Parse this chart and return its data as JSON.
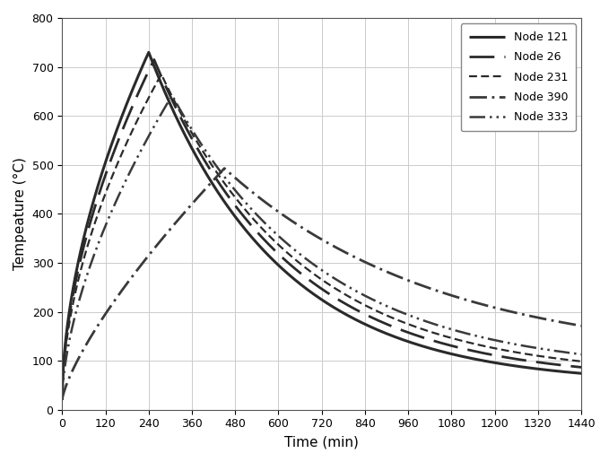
{
  "xlabel": "Time (min)",
  "ylabel": "Tempeature (°C)",
  "xlim": [
    0,
    1440
  ],
  "ylim": [
    0,
    800
  ],
  "xticks": [
    0,
    120,
    240,
    360,
    480,
    600,
    720,
    840,
    960,
    1080,
    1200,
    1320,
    1440
  ],
  "yticks": [
    0,
    100,
    200,
    300,
    400,
    500,
    600,
    700,
    800
  ],
  "series": [
    {
      "label": "Node 121",
      "linestyle_key": "solid",
      "linewidth": 2.2,
      "color": "#2a2a2a",
      "peak_time": 240,
      "peak_temp": 730,
      "start_temp": 20,
      "end_temp": 52,
      "rise_exp": 0.55,
      "decay_k": 0.00285
    },
    {
      "label": "Node 26",
      "linestyle_key": "long_dash",
      "linewidth": 2.0,
      "color": "#2a2a2a",
      "peak_time": 255,
      "peak_temp": 715,
      "start_temp": 20,
      "end_temp": 60,
      "rise_exp": 0.55,
      "decay_k": 0.0027
    },
    {
      "label": "Node 231",
      "linestyle_key": "dense_dash",
      "linewidth": 1.6,
      "color": "#2a2a2a",
      "peak_time": 275,
      "peak_temp": 685,
      "start_temp": 20,
      "end_temp": 67,
      "rise_exp": 0.55,
      "decay_k": 0.00255
    },
    {
      "label": "Node 390",
      "linestyle_key": "dashdot",
      "linewidth": 2.0,
      "color": "#3a3a3a",
      "peak_time": 450,
      "peak_temp": 493,
      "start_temp": 20,
      "end_temp": 98,
      "rise_exp": 0.75,
      "decay_k": 0.0017
    },
    {
      "label": "Node 333",
      "linestyle_key": "dashdotdot",
      "linewidth": 1.8,
      "color": "#3a3a3a",
      "peak_time": 305,
      "peak_temp": 642,
      "start_temp": 20,
      "end_temp": 76,
      "rise_exp": 0.6,
      "decay_k": 0.0024
    }
  ],
  "background_color": "#ffffff",
  "grid_color": "#cccccc",
  "grid_linewidth": 0.7,
  "legend_fontsize": 9,
  "tick_labelsize": 9,
  "axis_labelsize": 11
}
